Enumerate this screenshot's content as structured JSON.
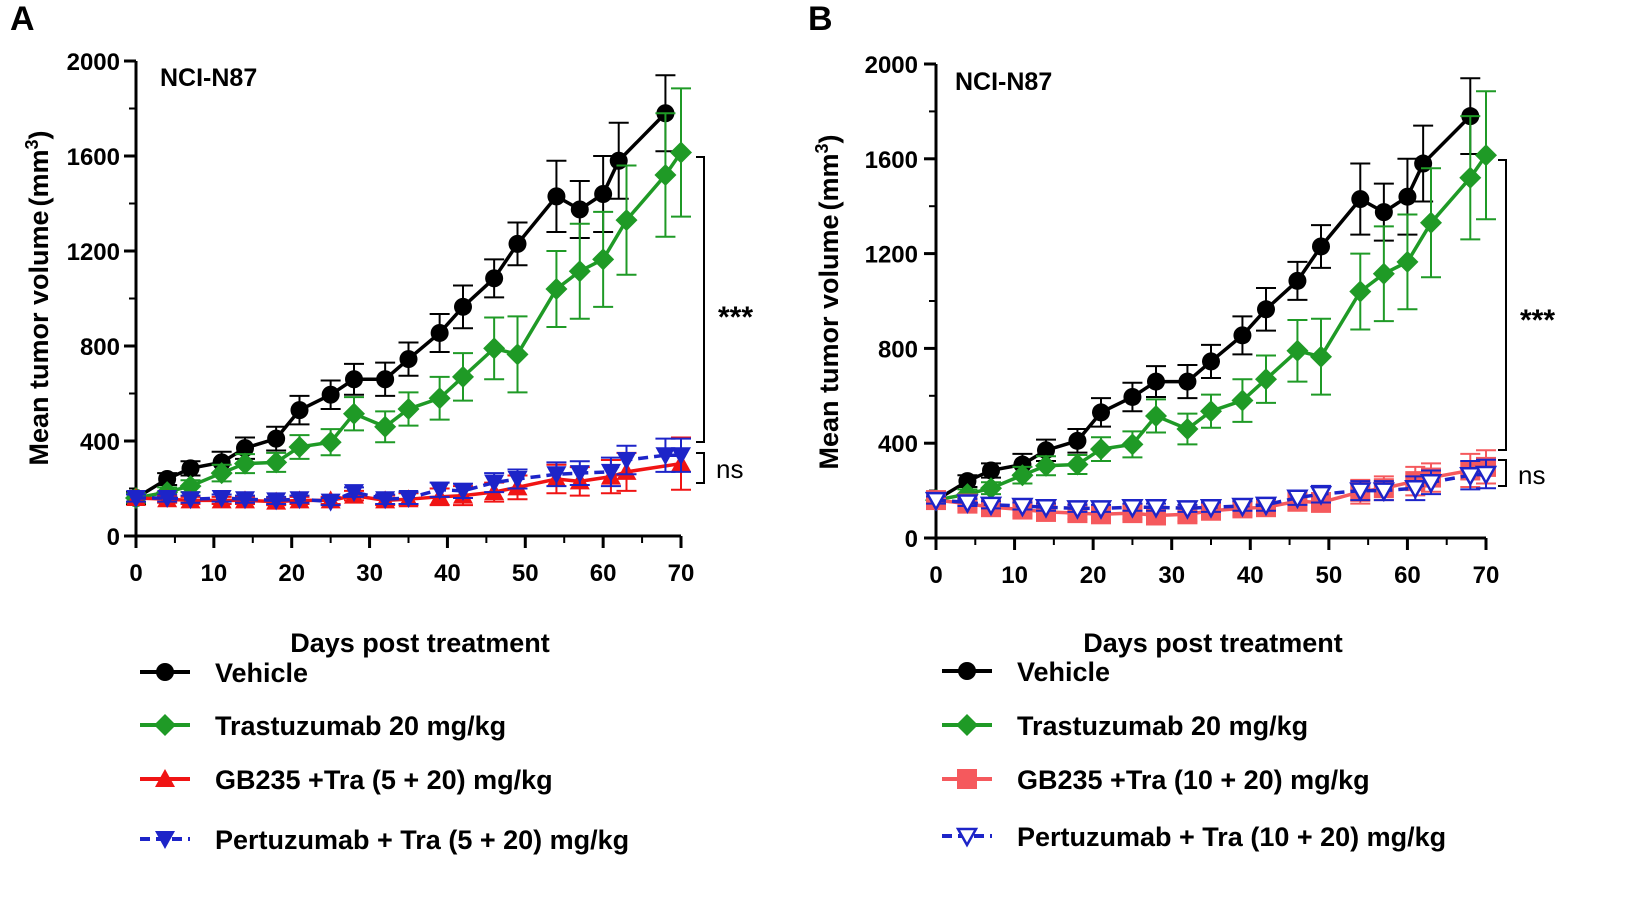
{
  "colors": {
    "vehicle": "#000000",
    "trastuzumab": "#1f9a26",
    "gb235_A": "#f01414",
    "gb235_B": "#f5595d",
    "pertuzumab": "#1d24c8"
  },
  "chart_data": [
    {
      "panel": "A",
      "type": "line",
      "title": "NCI-N87",
      "xlabel": "Days post treatment",
      "ylabel": "Mean tumor volume (mm3)",
      "ylabel_main": "Mean tumor volume",
      "ylabel_unit_open": "(mm",
      "ylabel_unit_sup": "3",
      "ylabel_unit_close": ")",
      "xlim": [
        0,
        70
      ],
      "ylim": [
        0,
        2000
      ],
      "xticks": [
        "0",
        "10",
        "20",
        "30",
        "40",
        "50",
        "60",
        "70"
      ],
      "yticks": [
        "0",
        "400",
        "800",
        "1200",
        "1600",
        "2000"
      ],
      "significance": {
        "upper": "***",
        "lower": "ns"
      },
      "series": [
        {
          "name": "Vehicle",
          "key": "vehicle",
          "marker": "circle",
          "dashed": false,
          "x": [
            0,
            4,
            7,
            11,
            14,
            18,
            21,
            25,
            28,
            32,
            35,
            39,
            42,
            46,
            49,
            54,
            57,
            60,
            62,
            68
          ],
          "y": [
            160,
            240,
            285,
            310,
            370,
            410,
            530,
            595,
            660,
            660,
            745,
            855,
            965,
            1085,
            1230,
            1430,
            1375,
            1440,
            1580,
            1780
          ],
          "err": [
            25,
            25,
            30,
            45,
            45,
            50,
            60,
            60,
            65,
            70,
            70,
            80,
            90,
            80,
            90,
            150,
            120,
            160,
            160,
            160
          ]
        },
        {
          "name": "Trastuzumab 20 mg/kg",
          "key": "trastuzumab",
          "marker": "diamond",
          "dashed": false,
          "x": [
            0,
            4,
            7,
            11,
            14,
            18,
            21,
            25,
            28,
            32,
            35,
            39,
            42,
            46,
            49,
            54,
            57,
            60,
            63,
            68,
            70
          ],
          "y": [
            160,
            185,
            210,
            265,
            305,
            310,
            375,
            395,
            515,
            460,
            535,
            580,
            670,
            790,
            765,
            1040,
            1115,
            1165,
            1330,
            1520,
            1615
          ],
          "err": [
            20,
            20,
            25,
            35,
            40,
            40,
            50,
            55,
            70,
            65,
            70,
            90,
            100,
            130,
            160,
            160,
            200,
            200,
            230,
            260,
            270
          ]
        },
        {
          "name": "GB235 +Tra (5 + 20) mg/kg",
          "key": "gb235_A",
          "marker": "triangle-up",
          "dashed": false,
          "x": [
            0,
            4,
            7,
            11,
            14,
            18,
            21,
            25,
            28,
            32,
            35,
            39,
            42,
            46,
            49,
            54,
            57,
            61,
            63,
            70
          ],
          "y": [
            160,
            155,
            150,
            150,
            150,
            145,
            150,
            150,
            170,
            150,
            155,
            165,
            170,
            185,
            205,
            240,
            230,
            250,
            270,
            305
          ],
          "err": [
            15,
            15,
            15,
            15,
            15,
            15,
            15,
            15,
            20,
            20,
            25,
            35,
            40,
            40,
            50,
            60,
            60,
            70,
            80,
            110
          ]
        },
        {
          "name": "Pertuzumab + Tra (5 + 20) mg/kg",
          "key": "pertuzumab",
          "marker": "triangle-down",
          "dashed": true,
          "x": [
            0,
            4,
            7,
            11,
            14,
            18,
            21,
            25,
            28,
            32,
            35,
            39,
            42,
            46,
            49,
            54,
            57,
            61,
            63,
            68,
            70
          ],
          "y": [
            160,
            160,
            155,
            160,
            155,
            150,
            155,
            145,
            185,
            155,
            160,
            195,
            190,
            225,
            240,
            260,
            265,
            270,
            320,
            340,
            340
          ],
          "err": [
            15,
            15,
            15,
            15,
            15,
            15,
            15,
            15,
            20,
            20,
            25,
            30,
            30,
            40,
            40,
            50,
            50,
            60,
            60,
            70,
            70
          ]
        }
      ],
      "legend": [
        {
          "key": "vehicle",
          "marker": "circle",
          "dashed": false,
          "label": "Vehicle"
        },
        {
          "key": "trastuzumab",
          "marker": "diamond",
          "dashed": false,
          "label": "Trastuzumab 20 mg/kg"
        },
        {
          "key": "gb235_A",
          "marker": "triangle-up",
          "dashed": false,
          "label": "GB235 +Tra (5 + 20) mg/kg"
        },
        {
          "key": "pertuzumab",
          "marker": "triangle-down",
          "dashed": true,
          "label": "Pertuzumab + Tra (5 + 20) mg/kg"
        }
      ]
    },
    {
      "panel": "B",
      "type": "line",
      "title": "NCI-N87",
      "xlabel": "Days post treatment",
      "ylabel": "Mean tumor volume (mm3)",
      "ylabel_main": "Mean tumor volume",
      "ylabel_unit_open": "(mm",
      "ylabel_unit_sup": "3",
      "ylabel_unit_close": ")",
      "xlim": [
        0,
        70
      ],
      "ylim": [
        0,
        2000
      ],
      "xticks": [
        "0",
        "10",
        "20",
        "30",
        "40",
        "50",
        "60",
        "70"
      ],
      "yticks": [
        "0",
        "400",
        "800",
        "1200",
        "1600",
        "2000"
      ],
      "significance": {
        "upper": "***",
        "lower": "ns"
      },
      "series": [
        {
          "name": "Vehicle",
          "key": "vehicle",
          "marker": "circle",
          "dashed": false,
          "x": [
            0,
            4,
            7,
            11,
            14,
            18,
            21,
            25,
            28,
            32,
            35,
            39,
            42,
            46,
            49,
            54,
            57,
            60,
            62,
            68
          ],
          "y": [
            160,
            240,
            285,
            310,
            370,
            410,
            530,
            595,
            660,
            660,
            745,
            855,
            965,
            1085,
            1230,
            1430,
            1375,
            1440,
            1580,
            1780
          ],
          "err": [
            25,
            25,
            30,
            45,
            45,
            50,
            60,
            60,
            65,
            70,
            70,
            80,
            90,
            80,
            90,
            150,
            120,
            160,
            160,
            160
          ]
        },
        {
          "name": "Trastuzumab 20 mg/kg",
          "key": "trastuzumab",
          "marker": "diamond",
          "dashed": false,
          "x": [
            0,
            4,
            7,
            11,
            14,
            18,
            21,
            25,
            28,
            32,
            35,
            39,
            42,
            46,
            49,
            54,
            57,
            60,
            63,
            68,
            70
          ],
          "y": [
            160,
            185,
            210,
            265,
            305,
            310,
            375,
            395,
            515,
            460,
            535,
            580,
            670,
            790,
            765,
            1040,
            1115,
            1165,
            1330,
            1520,
            1615
          ],
          "err": [
            20,
            20,
            25,
            35,
            40,
            40,
            50,
            55,
            70,
            65,
            70,
            90,
            100,
            130,
            160,
            160,
            200,
            200,
            230,
            260,
            270
          ]
        },
        {
          "name": "GB235 +Tra (10 + 20) mg/kg",
          "key": "gb235_B",
          "marker": "square",
          "dashed": false,
          "x": [
            0,
            4,
            7,
            11,
            14,
            18,
            21,
            25,
            28,
            32,
            35,
            39,
            42,
            46,
            49,
            54,
            57,
            61,
            63,
            68,
            70
          ],
          "y": [
            160,
            145,
            130,
            120,
            110,
            105,
            100,
            105,
            95,
            100,
            115,
            125,
            130,
            155,
            150,
            195,
            210,
            240,
            255,
            285,
            300
          ],
          "err": [
            15,
            20,
            25,
            25,
            25,
            25,
            25,
            25,
            25,
            30,
            30,
            30,
            30,
            40,
            40,
            50,
            50,
            60,
            60,
            70,
            70
          ]
        },
        {
          "name": "Pertuzumab + Tra (10 + 20) mg/kg",
          "key": "pertuzumab",
          "marker": "triangle-down-open",
          "dashed": true,
          "x": [
            0,
            4,
            7,
            11,
            14,
            18,
            21,
            25,
            28,
            32,
            35,
            39,
            42,
            46,
            49,
            54,
            57,
            61,
            63,
            68,
            70
          ],
          "y": [
            160,
            150,
            140,
            135,
            130,
            125,
            125,
            130,
            130,
            125,
            130,
            135,
            140,
            170,
            185,
            200,
            200,
            210,
            235,
            265,
            270
          ],
          "err": [
            15,
            15,
            15,
            15,
            15,
            15,
            15,
            15,
            15,
            15,
            20,
            20,
            25,
            30,
            35,
            40,
            40,
            50,
            50,
            60,
            60
          ]
        }
      ],
      "legend": [
        {
          "key": "vehicle",
          "marker": "circle",
          "dashed": false,
          "label": "Vehicle"
        },
        {
          "key": "trastuzumab",
          "marker": "diamond",
          "dashed": false,
          "label": "Trastuzumab 20 mg/kg"
        },
        {
          "key": "gb235_B",
          "marker": "square",
          "dashed": false,
          "label": "GB235 +Tra (10 + 20) mg/kg"
        },
        {
          "key": "pertuzumab",
          "marker": "triangle-down-open",
          "dashed": true,
          "label": "Pertuzumab + Tra (10 + 20) mg/kg"
        }
      ]
    }
  ]
}
